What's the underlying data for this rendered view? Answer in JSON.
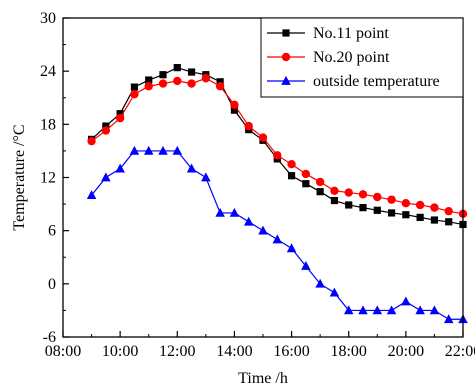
{
  "chart_data": {
    "type": "line",
    "xlabel": "Time /h",
    "ylabel": "Temperature /°C",
    "xlim": [
      "08:00",
      "22:00"
    ],
    "ylim": [
      -6,
      30
    ],
    "x_ticks": [
      "08:00",
      "10:00",
      "12:00",
      "14:00",
      "16:00",
      "18:00",
      "20:00",
      "22:00"
    ],
    "y_ticks": [
      -6,
      0,
      6,
      12,
      18,
      24,
      30
    ],
    "grid": false,
    "legend_position": "top-right",
    "series": [
      {
        "name": "No.11 point",
        "color": "#000000",
        "marker": "square",
        "x": [
          "09:00",
          "09:30",
          "10:00",
          "10:30",
          "11:00",
          "11:30",
          "12:00",
          "12:30",
          "13:00",
          "13:30",
          "14:00",
          "14:30",
          "15:00",
          "15:30",
          "16:00",
          "16:30",
          "17:00",
          "17:30",
          "18:00",
          "18:30",
          "19:00",
          "19:30",
          "20:00",
          "20:30",
          "21:00",
          "21:30",
          "22:00"
        ],
        "values": [
          16.3,
          17.8,
          19.2,
          22.2,
          23.0,
          23.6,
          24.4,
          23.9,
          23.6,
          22.8,
          19.6,
          17.4,
          16.2,
          14.1,
          12.2,
          11.3,
          10.4,
          9.4,
          8.9,
          8.6,
          8.3,
          8.0,
          7.8,
          7.5,
          7.2,
          7.0,
          6.7
        ]
      },
      {
        "name": "No.20 point",
        "color": "#ff0000",
        "marker": "circle",
        "x": [
          "09:00",
          "09:30",
          "10:00",
          "10:30",
          "11:00",
          "11:30",
          "12:00",
          "12:30",
          "13:00",
          "13:30",
          "14:00",
          "14:30",
          "15:00",
          "15:30",
          "16:00",
          "16:30",
          "17:00",
          "17:30",
          "18:00",
          "18:30",
          "19:00",
          "19:30",
          "20:00",
          "20:30",
          "21:00",
          "21:30",
          "22:00"
        ],
        "values": [
          16.1,
          17.3,
          18.7,
          21.4,
          22.3,
          22.6,
          22.9,
          22.6,
          23.2,
          22.3,
          20.2,
          17.8,
          16.5,
          14.5,
          13.5,
          12.4,
          11.5,
          10.5,
          10.3,
          10.1,
          9.8,
          9.5,
          9.1,
          8.9,
          8.6,
          8.2,
          7.9
        ]
      },
      {
        "name": "outside temperature",
        "color": "#0000ff",
        "marker": "triangle",
        "x": [
          "09:00",
          "09:30",
          "10:00",
          "10:30",
          "11:00",
          "11:30",
          "12:00",
          "12:30",
          "13:00",
          "13:30",
          "14:00",
          "14:30",
          "15:00",
          "15:30",
          "16:00",
          "16:30",
          "17:00",
          "17:30",
          "18:00",
          "18:30",
          "19:00",
          "19:30",
          "20:00",
          "20:30",
          "21:00",
          "21:30",
          "22:00"
        ],
        "values": [
          10,
          12,
          13,
          15,
          15,
          15,
          15,
          13,
          12,
          8,
          8,
          7,
          6,
          5,
          4,
          2,
          0,
          -1,
          -3,
          -3,
          -3,
          -3,
          -2,
          -3,
          -3,
          -4,
          -4
        ]
      }
    ]
  }
}
